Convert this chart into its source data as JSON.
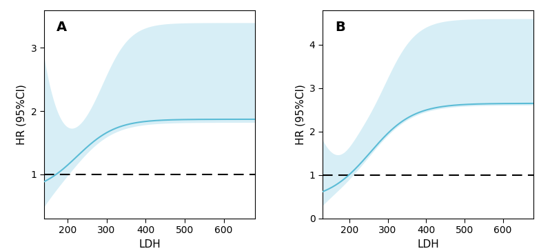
{
  "panel_A": {
    "label": "A",
    "xlim": [
      140,
      680
    ],
    "ylim": [
      0.3,
      3.6
    ],
    "yticks": [
      1,
      2,
      3
    ],
    "xticks": [
      200,
      300,
      400,
      500,
      600
    ],
    "xlabel": "LDH",
    "ylabel": "HR (95%CI)",
    "dashed_y": 1.0,
    "line_color": "#5bbcd6",
    "fill_color": "#bde4f0",
    "fill_alpha": 0.6
  },
  "panel_B": {
    "label": "B",
    "xlim": [
      130,
      680
    ],
    "ylim": [
      0.0,
      4.8
    ],
    "yticks": [
      0,
      1,
      2,
      3,
      4
    ],
    "xticks": [
      200,
      300,
      400,
      500,
      600
    ],
    "xlabel": "LDH",
    "ylabel": "HR (95%CI)",
    "dashed_y": 1.0,
    "line_color": "#5bbcd6",
    "fill_color": "#bde4f0",
    "fill_alpha": 0.6
  }
}
